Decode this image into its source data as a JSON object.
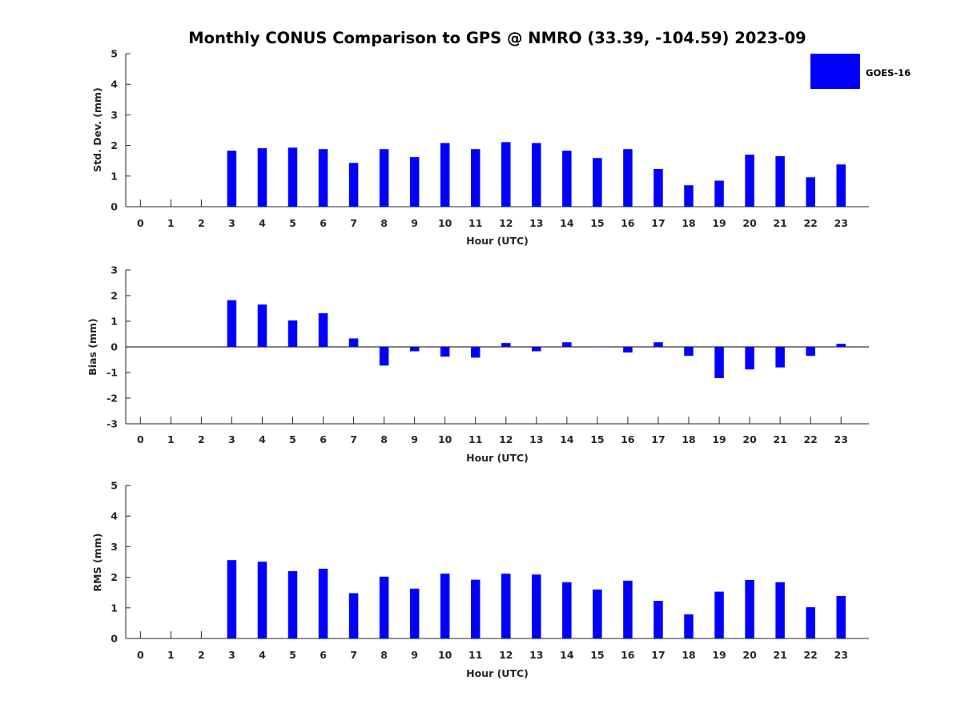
{
  "title": "Monthly CONUS Comparison to GPS @ NMRO (33.39, -104.59) 2023-09",
  "legend": {
    "label": "GOES-16",
    "color": "#0000ff",
    "placement": "top-right"
  },
  "chart_data": [
    {
      "type": "bar",
      "xlabel": "Hour (UTC)",
      "ylabel": "Std. Dev. (mm)",
      "ylim": [
        0,
        5
      ],
      "yticks": [
        "0",
        "1",
        "2",
        "3",
        "4",
        "5"
      ],
      "categories": [
        "0",
        "1",
        "2",
        "3",
        "4",
        "5",
        "6",
        "7",
        "8",
        "9",
        "10",
        "11",
        "12",
        "13",
        "14",
        "15",
        "16",
        "17",
        "18",
        "19",
        "20",
        "21",
        "22",
        "23"
      ],
      "series": [
        {
          "name": "GOES-16",
          "values": [
            null,
            null,
            null,
            1.83,
            1.91,
            1.93,
            1.88,
            1.43,
            1.88,
            1.62,
            2.08,
            1.88,
            2.11,
            2.08,
            1.83,
            1.59,
            1.88,
            1.23,
            0.7,
            0.85,
            1.7,
            1.65,
            0.96,
            1.38
          ]
        }
      ]
    },
    {
      "type": "bar",
      "xlabel": "Hour (UTC)",
      "ylabel": "Bias (mm)",
      "ylim": [
        -3,
        3
      ],
      "yticks": [
        "-3",
        "-2",
        "-1",
        "0",
        "1",
        "2",
        "3"
      ],
      "categories": [
        "0",
        "1",
        "2",
        "3",
        "4",
        "5",
        "6",
        "7",
        "8",
        "9",
        "10",
        "11",
        "12",
        "13",
        "14",
        "15",
        "16",
        "17",
        "18",
        "19",
        "20",
        "21",
        "22",
        "23"
      ],
      "series": [
        {
          "name": "GOES-16",
          "values": [
            null,
            null,
            null,
            1.82,
            1.65,
            1.03,
            1.31,
            0.33,
            -0.73,
            -0.17,
            -0.38,
            -0.42,
            0.15,
            -0.17,
            0.18,
            0.0,
            -0.22,
            0.18,
            -0.35,
            -1.22,
            -0.88,
            -0.8,
            -0.35,
            0.12
          ]
        }
      ]
    },
    {
      "type": "bar",
      "xlabel": "Hour (UTC)",
      "ylabel": "RMS (mm)",
      "ylim": [
        0,
        5
      ],
      "yticks": [
        "0",
        "1",
        "2",
        "3",
        "4",
        "5"
      ],
      "categories": [
        "0",
        "1",
        "2",
        "3",
        "4",
        "5",
        "6",
        "7",
        "8",
        "9",
        "10",
        "11",
        "12",
        "13",
        "14",
        "15",
        "16",
        "17",
        "18",
        "19",
        "20",
        "21",
        "22",
        "23"
      ],
      "series": [
        {
          "name": "GOES-16",
          "values": [
            null,
            null,
            null,
            2.56,
            2.51,
            2.2,
            2.28,
            1.48,
            2.02,
            1.63,
            2.12,
            1.92,
            2.12,
            2.09,
            1.84,
            1.6,
            1.89,
            1.23,
            0.79,
            1.53,
            1.91,
            1.84,
            1.02,
            1.39
          ]
        }
      ]
    }
  ]
}
